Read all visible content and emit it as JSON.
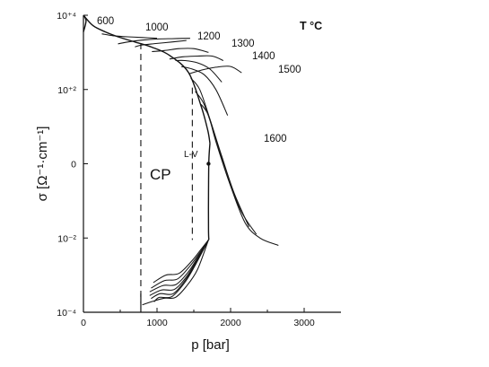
{
  "chart_data": {
    "type": "line",
    "xlabel": "p [bar]",
    "ylabel": "σ [Ω⁻¹·cm⁻¹]",
    "xlim": [
      0,
      3500
    ],
    "ylim": [
      -4,
      4
    ],
    "y_scale": "log10",
    "x_ticks": [
      0,
      1000,
      2000,
      3000
    ],
    "y_ticks": [
      {
        "value": 4,
        "label": "10⁺⁴"
      },
      {
        "value": 2,
        "label": "10⁺²"
      },
      {
        "value": 0,
        "label": "0"
      },
      {
        "value": -2,
        "label": "10⁻²"
      },
      {
        "value": -4,
        "label": "10⁻⁴"
      }
    ],
    "legend_title": "T °C",
    "annotations": [
      {
        "text": "CP",
        "x": 1000,
        "y": 0
      },
      {
        "text": "L-V",
        "x": 1520,
        "y": 0.2
      }
    ],
    "critical_point_line_x": 780,
    "liquid_vapor_line_x": 1480,
    "critical_point_marker": {
      "x": 1700,
      "y": 0
    },
    "series": [
      {
        "name": "600",
        "x": [
          250,
          400,
          600,
          800,
          1000
        ],
        "y": [
          3.5,
          3.45,
          3.42,
          3.4,
          3.38
        ]
      },
      {
        "name": "1000",
        "x": [
          470,
          600,
          800,
          1000,
          1200,
          1450
        ],
        "y": [
          3.23,
          3.28,
          3.33,
          3.36,
          3.37,
          3.38
        ]
      },
      {
        "name": "1200",
        "x": [
          700,
          800,
          1000,
          1200,
          1400
        ],
        "y": [
          3.15,
          3.2,
          3.24,
          3.28,
          3.32
        ]
      },
      {
        "name": "1300",
        "x": [
          930,
          1100,
          1300,
          1500,
          1700
        ],
        "y": [
          3.02,
          3.05,
          3.1,
          3.1,
          3.0
        ]
      },
      {
        "name": "1400",
        "x": [
          1170,
          1350,
          1550,
          1750,
          1900
        ],
        "y": [
          2.82,
          2.88,
          2.9,
          2.9,
          2.78
        ]
      },
      {
        "name": "1500",
        "x": [
          1430,
          1600,
          1800,
          2000,
          2150
        ],
        "y": [
          2.42,
          2.52,
          2.6,
          2.62,
          2.45
        ]
      },
      {
        "name": "1600",
        "x": [
          1600,
          1700,
          1800,
          2000,
          2200,
          2400,
          2650
        ],
        "y": [
          1.6,
          1.3,
          0.6,
          -0.6,
          -1.6,
          -2.0,
          -2.2
        ]
      }
    ],
    "low_conductivity_region": {
      "x_range": [
        900,
        1700
      ],
      "y_range": [
        -3.8,
        -2.5
      ]
    }
  }
}
